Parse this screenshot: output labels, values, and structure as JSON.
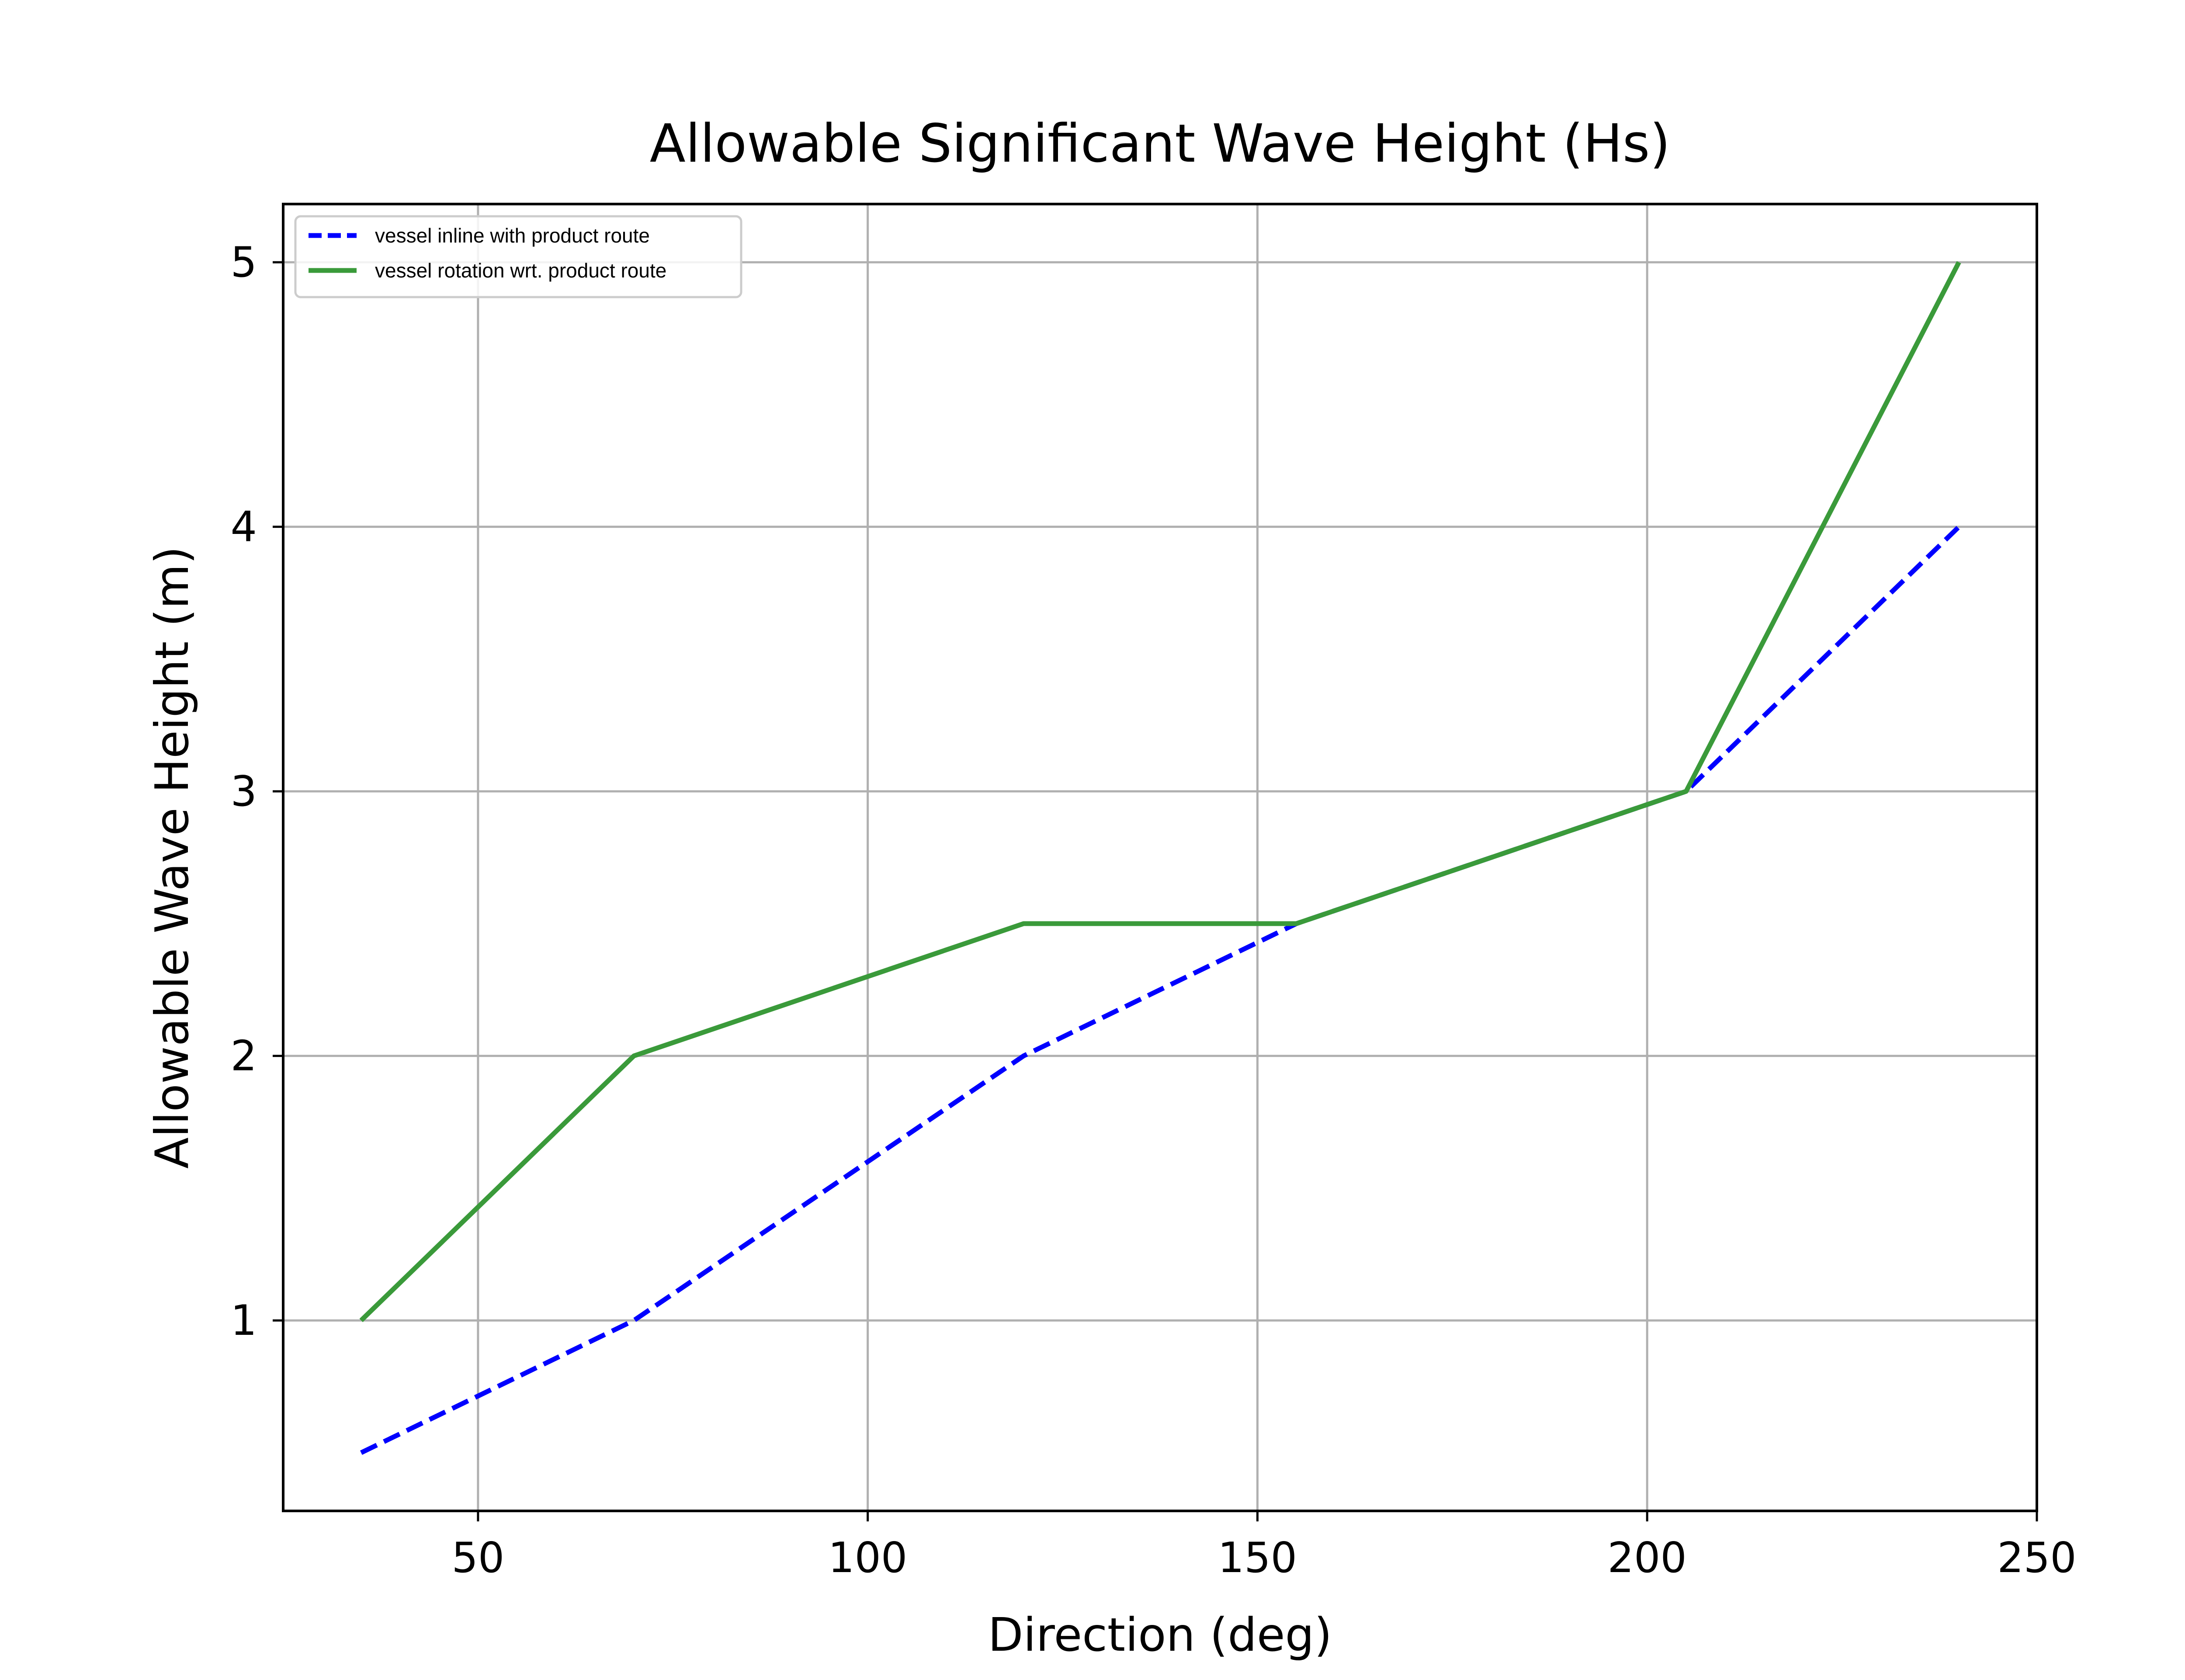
{
  "chart_data": {
    "type": "line",
    "title": "Allowable Significant Wave Height (Hs)",
    "xlabel": "Direction (deg)",
    "ylabel": "Allowable Wave Height (m)",
    "xlim": [
      25,
      250
    ],
    "ylim": [
      0.28,
      5.22
    ],
    "xticks": [
      50,
      100,
      150,
      200,
      250
    ],
    "yticks": [
      1,
      2,
      3,
      4,
      5
    ],
    "xtick_labels": [
      "50",
      "100",
      "150",
      "200",
      "250"
    ],
    "ytick_labels": [
      "1",
      "2",
      "3",
      "4",
      "5"
    ],
    "grid": true,
    "legend_position": "top-left",
    "series": [
      {
        "name": "vessel inline with product route",
        "color": "#0000ff",
        "style": "dashed",
        "x": [
          35,
          70,
          120,
          155,
          205,
          240
        ],
        "y": [
          0.5,
          1.0,
          2.0,
          2.5,
          3.0,
          4.0
        ]
      },
      {
        "name": "vessel rotation wrt. product route",
        "color": "#3a9a3a",
        "style": "solid",
        "x": [
          35,
          70,
          120,
          155,
          205,
          240
        ],
        "y": [
          1.0,
          2.0,
          2.5,
          2.5,
          3.0,
          5.0
        ]
      }
    ]
  }
}
